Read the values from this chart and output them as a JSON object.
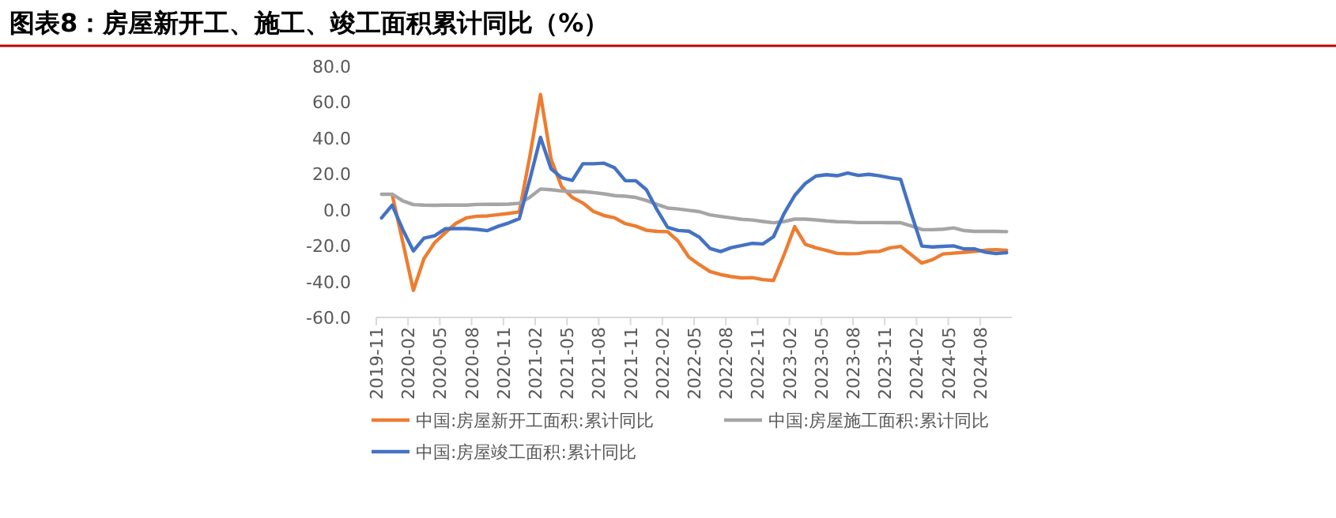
{
  "chart_data": {
    "type": "line",
    "title": "图表8：房屋新开工、施工、竣工面积累计同比（%）",
    "categories": [
      "2019-11",
      null,
      null,
      "2020-02",
      null,
      null,
      "2020-05",
      null,
      null,
      "2020-08",
      null,
      null,
      "2020-11",
      null,
      null,
      "2021-02",
      null,
      null,
      "2021-05",
      null,
      null,
      "2021-08",
      null,
      null,
      "2021-11",
      null,
      null,
      "2022-02",
      null,
      null,
      "2022-05",
      null,
      null,
      "2022-08",
      null,
      null,
      "2022-11",
      null,
      null,
      "2023-02",
      null,
      null,
      "2023-05",
      null,
      null,
      "2023-08",
      null,
      null,
      "2023-11",
      null,
      null,
      "2024-02",
      null,
      null,
      "2024-05",
      null,
      null,
      "2024-08",
      null,
      null
    ],
    "series": [
      {
        "name": "中国:房屋新开工面积:累计同比",
        "color": "#ed7d31",
        "values": [
          null,
          8.5,
          -18,
          -44.9,
          -27.2,
          -18.4,
          -12.8,
          -7.6,
          -4.5,
          -3.6,
          -3.4,
          -2.7,
          -2.0,
          -1.2,
          30,
          64.3,
          28.2,
          12.8,
          6.9,
          3.8,
          -0.9,
          -3.2,
          -4.5,
          -7.7,
          -9.1,
          -11.4,
          -12,
          -12.2,
          -17.5,
          -26.3,
          -30.6,
          -34.4,
          -36.1,
          -37.2,
          -38.0,
          -37.8,
          -38.9,
          -39.4,
          -25,
          -9.4,
          -19.2,
          -21.2,
          -22.6,
          -24.3,
          -24.5,
          -24.4,
          -23.4,
          -23.2,
          -21.2,
          -20.4,
          -25,
          -29.7,
          -27.8,
          -24.6,
          -24.2,
          -23.7,
          -23.2,
          -22.5,
          -22.2,
          -22.6
        ]
      },
      {
        "name": "中国:房屋施工面积:累计同比",
        "color": "#a5a5a5",
        "values": [
          8.7,
          8.7,
          5,
          2.9,
          2.6,
          2.5,
          2.6,
          2.6,
          2.6,
          3.0,
          3.1,
          3.1,
          3.2,
          3.7,
          7,
          11.6,
          11.2,
          10.5,
          10.1,
          10.2,
          9.6,
          8.9,
          7.9,
          7.6,
          6.9,
          5.2,
          3,
          1,
          0.5,
          -0.3,
          -1.0,
          -2.8,
          -3.7,
          -4.5,
          -5.3,
          -5.7,
          -6.5,
          -7.2,
          -6.5,
          -5.2,
          -5.2,
          -5.6,
          -6.2,
          -6.6,
          -6.8,
          -7.1,
          -7.1,
          -7.1,
          -7.2,
          -7.2,
          -9,
          -11,
          -11.1,
          -10.8,
          -10.1,
          -11.6,
          -12.0,
          -12.0,
          -12.0,
          -12.2
        ]
      },
      {
        "name": "中国:房屋竣工面积:累计同比",
        "color": "#4472c4",
        "values": [
          -4.5,
          2.6,
          -11,
          -22.9,
          -15.8,
          -14.5,
          -10.6,
          -10.5,
          -10.5,
          -10.9,
          -11.6,
          -9.2,
          -7.3,
          -4.9,
          17,
          40.4,
          22.9,
          17.9,
          16.4,
          25.7,
          25.7,
          26.0,
          23.4,
          16.3,
          16.2,
          11.2,
          0,
          -9.8,
          -11.5,
          -11.9,
          -15.3,
          -21.5,
          -23.3,
          -21.1,
          -19.9,
          -18.7,
          -19.0,
          -15.0,
          -2,
          8.0,
          14.7,
          18.8,
          19.6,
          19.0,
          20.5,
          19.2,
          19.8,
          19.0,
          17.9,
          17.0,
          -2,
          -20.2,
          -20.7,
          -20.4,
          -20.1,
          -21.8,
          -21.8,
          -23.6,
          -24.4,
          -23.9
        ]
      }
    ],
    "ylim": [
      -60,
      80
    ],
    "yticks": [
      {
        "value": -60,
        "label": "-60.0"
      },
      {
        "value": -40,
        "label": "-40.0"
      },
      {
        "value": -20,
        "label": "-20.0"
      },
      {
        "value": 0,
        "label": "0.0"
      },
      {
        "value": 20,
        "label": "20.0"
      },
      {
        "value": 40,
        "label": "40.0"
      },
      {
        "value": 60,
        "label": "60.0"
      },
      {
        "value": 80,
        "label": "80.0"
      }
    ],
    "legend": "bottom",
    "line_style": "solid"
  }
}
